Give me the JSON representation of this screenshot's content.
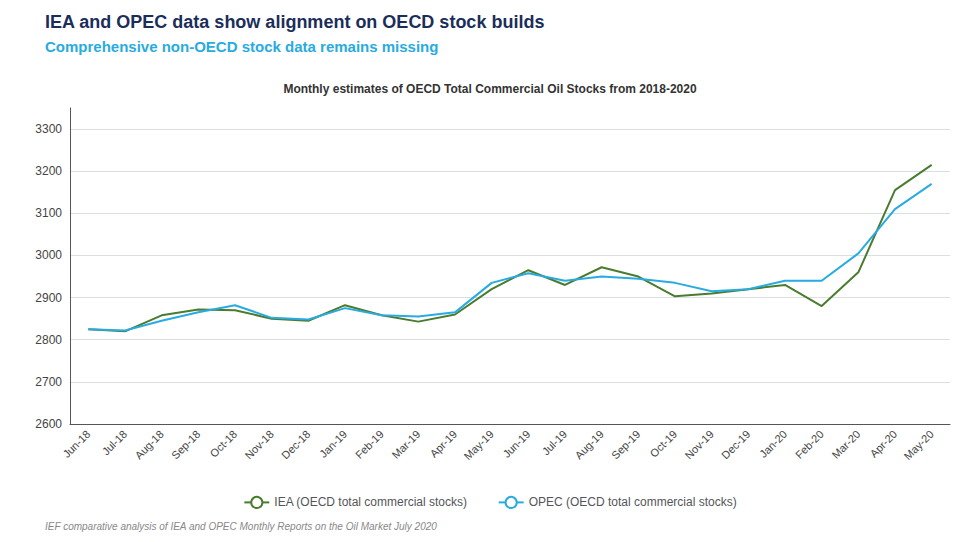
{
  "chart_data": {
    "type": "line",
    "title": "IEA and OPEC data show alignment on OECD stock builds",
    "subtitle": "Comprehensive non-OECD stock data remains missing",
    "annotations": [
      "Monthly estimates of OECD Total Commercial Oil Stocks from 2018-2020",
      "IEF comparative analysis of IEA and OPEC Monthly Reports on the Oil Market July 2020"
    ],
    "categories": [
      "Jun-18",
      "Jul-18",
      "Aug-18",
      "Sep-18",
      "Oct-18",
      "Nov-18",
      "Dec-18",
      "Jan-19",
      "Feb-19",
      "Mar-19",
      "Apr-19",
      "May-19",
      "Jun-19",
      "Jul-19",
      "Aug-19",
      "Sep-19",
      "Oct-19",
      "Nov-19",
      "Dec-19",
      "Jan-20",
      "Feb-20",
      "Mar-20",
      "Apr-20",
      "May-20"
    ],
    "series": [
      {
        "name": "IEA (OECD total commercial stocks)",
        "color": "#4a7c2f",
        "values": [
          2825,
          2820,
          2858,
          2872,
          2870,
          2850,
          2845,
          2882,
          2858,
          2843,
          2860,
          2920,
          2965,
          2930,
          2972,
          2950,
          2903,
          2910,
          2920,
          2930,
          2880,
          2960,
          3155,
          3215
        ]
      },
      {
        "name": "OPEC (OECD total commercial stocks)",
        "color": "#29abe2",
        "values": [
          2825,
          2822,
          2845,
          2865,
          2882,
          2852,
          2848,
          2875,
          2858,
          2855,
          2865,
          2935,
          2958,
          2940,
          2950,
          2945,
          2935,
          2915,
          2920,
          2940,
          2940,
          3005,
          3110,
          3170
        ]
      }
    ],
    "ylim": [
      2600,
      3350
    ],
    "yticks": [
      2600,
      2700,
      2800,
      2900,
      3000,
      3100,
      3200,
      3300
    ],
    "grid": true,
    "legend": "bottom"
  }
}
